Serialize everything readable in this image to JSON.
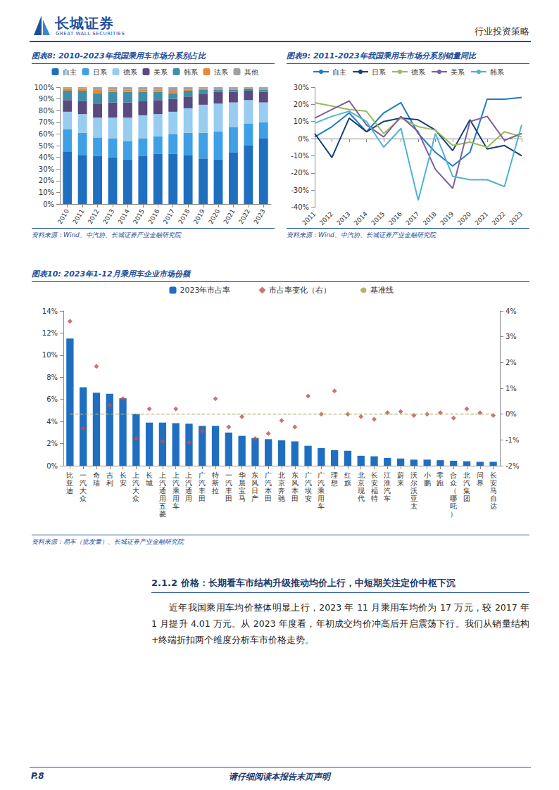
{
  "header": {
    "logo": "长城证券",
    "logo_en": "GREAT WALL SECURITIES",
    "right": "行业投资策略"
  },
  "chart_data": [
    {
      "type": "bar",
      "title": "图表8: 2010-2023年我国乘用车市场分系别占比",
      "annotations": [
        "资料来源：Wind、中汽协、长城证券产业金融研究院"
      ],
      "stacked": true,
      "grid": false,
      "legend": "top",
      "categories": [
        "2010",
        "2011",
        "2012",
        "2013",
        "2014",
        "2015",
        "2016",
        "2017",
        "2018",
        "2019",
        "2020",
        "2021",
        "2022",
        "2023"
      ],
      "ylim": [
        0,
        100
      ],
      "yticks": [
        {
          "value": 0,
          "label": "0%"
        },
        {
          "value": 10,
          "label": "10%"
        },
        {
          "value": 20,
          "label": "20%"
        },
        {
          "value": 30,
          "label": "30%"
        },
        {
          "value": 40,
          "label": "40%"
        },
        {
          "value": 50,
          "label": "50%"
        },
        {
          "value": 60,
          "label": "60%"
        },
        {
          "value": 70,
          "label": "70%"
        },
        {
          "value": 80,
          "label": "80%"
        },
        {
          "value": 90,
          "label": "90%"
        },
        {
          "value": 100,
          "label": "100%"
        }
      ],
      "series": [
        {
          "name": "自主",
          "color": "#1f6fc0",
          "values": [
            45,
            42,
            41,
            40,
            38,
            41,
            43,
            43,
            42,
            39,
            38,
            44,
            50,
            56
          ]
        },
        {
          "name": "日系",
          "color": "#3fa0e6",
          "values": [
            19,
            19,
            16,
            16,
            16,
            15,
            15,
            17,
            19,
            22,
            24,
            22,
            19,
            14
          ]
        },
        {
          "name": "德系",
          "color": "#96cdf0",
          "values": [
            15,
            16,
            17,
            18,
            20,
            20,
            19,
            19,
            21,
            24,
            24,
            21,
            20,
            17
          ]
        },
        {
          "name": "美系",
          "color": "#5b4a7e",
          "values": [
            10,
            11,
            12,
            13,
            13,
            12,
            12,
            11,
            10,
            9,
            10,
            9,
            8,
            9
          ]
        },
        {
          "name": "韩系",
          "color": "#3f8fa8",
          "values": [
            8,
            9,
            9,
            9,
            9,
            8,
            7,
            5,
            5,
            4,
            2,
            2,
            2,
            2
          ]
        },
        {
          "name": "法系",
          "color": "#e58a3a",
          "values": [
            2,
            2,
            3,
            2,
            2,
            2,
            2,
            2,
            1,
            1,
            0.5,
            0.5,
            0.3,
            0.3
          ]
        },
        {
          "name": "其他",
          "color": "#a0a0a0",
          "values": [
            1,
            1,
            2,
            2,
            2,
            2,
            2,
            3,
            2,
            1,
            1.5,
            1.5,
            0.7,
            1.7
          ]
        }
      ]
    },
    {
      "type": "line",
      "title": "图表9: 2011-2023年我国乘用车市场分系别销量同比",
      "annotations": [
        "资料来源：Wind、中汽协、长城证券产业金融研究院"
      ],
      "grid": false,
      "legend": "top",
      "categories": [
        "2011",
        "2012",
        "2013",
        "2014",
        "2015",
        "2016",
        "2017",
        "2018",
        "2019",
        "2020",
        "2021",
        "2022",
        "2023"
      ],
      "ylim": [
        -40,
        30
      ],
      "yticks": [
        {
          "value": -40,
          "label": "-40%"
        },
        {
          "value": -30,
          "label": "-30%"
        },
        {
          "value": -20,
          "label": "-20%"
        },
        {
          "value": -10,
          "label": "-10%"
        },
        {
          "value": 0,
          "label": "0%"
        },
        {
          "value": 10,
          "label": "10%"
        },
        {
          "value": 20,
          "label": "20%"
        },
        {
          "value": 30,
          "label": "30%"
        }
      ],
      "series": [
        {
          "name": "自主",
          "color": "#1f7ac8",
          "values": [
            1,
            7,
            15,
            4,
            15,
            21,
            3,
            -8,
            -16,
            -8,
            23,
            23,
            24
          ]
        },
        {
          "name": "日系",
          "color": "#163f7a",
          "values": [
            3,
            -11,
            12,
            4,
            10,
            12,
            11,
            5,
            -7,
            11,
            -6,
            -4,
            -10
          ]
        },
        {
          "name": "德系",
          "color": "#9bbb59",
          "values": [
            21,
            19,
            17,
            16,
            3,
            12,
            7,
            5,
            -4,
            -2,
            -5,
            4,
            1
          ]
        },
        {
          "name": "美系",
          "color": "#7d5fa0",
          "values": [
            12,
            17,
            22,
            8,
            1,
            13,
            4,
            -18,
            -29,
            10,
            13,
            -1,
            3
          ]
        },
        {
          "name": "韩系",
          "color": "#4fb3d1",
          "values": [
            9,
            13,
            16,
            10,
            -5,
            6,
            -36,
            3,
            -22,
            -24,
            -24,
            -28,
            8
          ]
        }
      ]
    },
    {
      "type": "bar",
      "title": "图表10: 2023年1-12月乘用车企业市场份额",
      "annotations": [
        "资料来源：易车（批发量）、长城证券产业金融研究院"
      ],
      "grid": false,
      "legend": "top",
      "categories": [
        "比亚迪",
        "一汽大众",
        "奇瑞",
        "吉利",
        "长安",
        "上汽大众",
        "长城",
        "上汽通用五菱",
        "上汽乘用车",
        "上汽通用",
        "广汽丰田",
        "特斯拉",
        "一汽丰田",
        "华晨宝马",
        "东风日产",
        "广汽本田",
        "北京奔驰",
        "东风本田",
        "广汽埃安",
        "广汽乘用车",
        "理想",
        "红旗",
        "北京现代",
        "长安福特",
        "江淮汽车",
        "蔚来",
        "沃尔沃亚太",
        "小鹏",
        "零跑",
        "合众（哪吒）",
        "北汽集团",
        "问界",
        "长安马自达"
      ],
      "ylim": [
        0,
        14
      ],
      "yticks": [
        {
          "value": 0,
          "label": "0%"
        },
        {
          "value": 2,
          "label": "2%"
        },
        {
          "value": 4,
          "label": "4%"
        },
        {
          "value": 6,
          "label": "6%"
        },
        {
          "value": 8,
          "label": "8%"
        },
        {
          "value": 10,
          "label": "10%"
        },
        {
          "value": 12,
          "label": "12%"
        },
        {
          "value": 14,
          "label": "14%"
        }
      ],
      "y2lim": [
        -2,
        4
      ],
      "y2ticks": [
        {
          "value": -2,
          "label": "-2%"
        },
        {
          "value": -1,
          "label": "-1%"
        },
        {
          "value": 0,
          "label": "0%"
        },
        {
          "value": 1,
          "label": "1%"
        },
        {
          "value": 2,
          "label": "2%"
        },
        {
          "value": 3,
          "label": "3%"
        },
        {
          "value": 4,
          "label": "4%"
        }
      ],
      "series": [
        {
          "name": "2023年市占率",
          "type": "bar",
          "color": "#1f6fc0",
          "values": [
            11.5,
            7.1,
            6.6,
            6.5,
            6.1,
            4.7,
            3.9,
            3.9,
            3.85,
            3.8,
            3.6,
            3.6,
            3.0,
            2.7,
            2.5,
            2.4,
            2.3,
            2.2,
            1.8,
            1.6,
            1.4,
            1.35,
            0.9,
            0.85,
            0.7,
            0.65,
            0.55,
            0.55,
            0.5,
            0.45,
            0.4,
            0.35,
            0.35
          ]
        },
        {
          "name": "市占率变化（右）",
          "type": "scatter",
          "axis": "y2",
          "marker": "diamond",
          "color": "#c0504d",
          "values": [
            3.6,
            -0.55,
            1.85,
            0.35,
            0.6,
            -0.95,
            0.2,
            -1.05,
            0.2,
            -1.1,
            -0.65,
            0.6,
            -0.5,
            -0.1,
            -0.95,
            -0.75,
            -0.25,
            -0.5,
            0.7,
            0.0,
            0.9,
            0.0,
            -0.1,
            -0.2,
            0.05,
            0.1,
            -0.05,
            0.0,
            0.05,
            -0.15,
            0.2,
            0.05,
            -0.05
          ]
        },
        {
          "name": "基准线",
          "type": "line",
          "axis": "y2",
          "line_style": "dashed",
          "color": "#b4b46e",
          "values": [
            0,
            0,
            0,
            0,
            0,
            0,
            0,
            0,
            0,
            0,
            0,
            0,
            0,
            0,
            0,
            0,
            0,
            0,
            0,
            0,
            0,
            0,
            0,
            0,
            0,
            0,
            0,
            0,
            0,
            0,
            0,
            0,
            0
          ]
        }
      ]
    }
  ],
  "section": {
    "heading": "2.1.2 价格：长期看车市结构升级推动均价上行，中短期关注定价中枢下沉",
    "paragraph": "近年我国乘用车均价整体明显上行，2023 年 11 月乘用车均价为 17 万元，较 2017 年 1 月提升 4.01 万元。从 2023 年度看，年初成交均价冲高后开启震荡下行。我们从销量结构+终端折扣两个维度分析车市价格走势。"
  },
  "footer": {
    "page": "P.8",
    "notice": "请仔细阅读本报告末页声明"
  }
}
